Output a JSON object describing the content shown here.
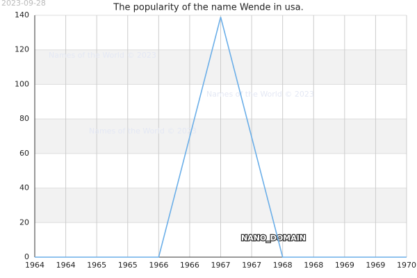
{
  "chart_data": {
    "type": "line",
    "title": "The popularity of the name Wende in usa.",
    "date_stamp": "2023-09-28",
    "watermarks": [
      "Names of the World © 2023",
      "Names of the World © 2023",
      "Names of the World © 2023"
    ],
    "domain_label": "NANO_DOMAIN",
    "x": [
      1964,
      1965,
      1966,
      1967,
      1968,
      1969,
      1970
    ],
    "series": [
      {
        "name": "Wende",
        "color": "#6aaee8",
        "values": [
          0,
          0,
          0,
          139,
          0,
          0,
          0
        ]
      }
    ],
    "xlim": [
      1964,
      1970
    ],
    "xticks": [
      {
        "value": 1964,
        "label": "1964"
      },
      {
        "value": 1964.5,
        "label": "1964"
      },
      {
        "value": 1965,
        "label": "1965"
      },
      {
        "value": 1965.5,
        "label": "1965"
      },
      {
        "value": 1966,
        "label": "1966"
      },
      {
        "value": 1966.5,
        "label": "1966"
      },
      {
        "value": 1967,
        "label": "1967"
      },
      {
        "value": 1967.5,
        "label": "1967"
      },
      {
        "value": 1968,
        "label": "1968"
      },
      {
        "value": 1968.5,
        "label": "1968"
      },
      {
        "value": 1969,
        "label": "1969"
      },
      {
        "value": 1969.5,
        "label": "1969"
      },
      {
        "value": 1970,
        "label": "1970"
      }
    ],
    "ylim": [
      0,
      140
    ],
    "yticks": [
      0,
      20,
      40,
      60,
      80,
      100,
      120,
      140
    ],
    "grid": true,
    "bands": true
  }
}
